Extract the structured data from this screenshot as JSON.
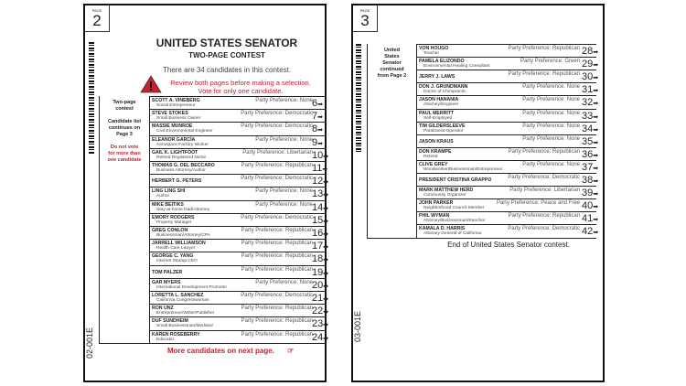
{
  "left_page": {
    "page_label": "PAGE",
    "page_number": "2",
    "title": "UNITED STATES SENATOR",
    "subtitle": "TWO-PAGE CONTEST",
    "count_text": "There are 34 candidates in this contest.",
    "warning_line1": "Review both pages before making a selection.",
    "warning_line2": "Vote for only one candidate.",
    "side_note1": "Two-page contest",
    "side_note2": "Candidate list continues on Page 3",
    "side_warning": "Do not vote for more than one candidate",
    "footer": "More candidates on next page.",
    "code": "02-001E",
    "candidates": [
      {
        "name": "SCOTT A. VINEBERG",
        "occupation": "Social Entrepreneur",
        "party": "Party Preference: None",
        "number": "6"
      },
      {
        "name": "STEVE STOKES",
        "occupation": "Small Business Owner",
        "party": "Party Preference: Democratic",
        "number": "7"
      },
      {
        "name": "MASSIE MUNROE",
        "occupation": "Civil Environmental Engineer",
        "party": "Party Preference: Democratic",
        "number": "8"
      },
      {
        "name": "ELEANOR GARCÍA",
        "occupation": "Aerospace Factory Worker",
        "party": "Party Preference: None",
        "number": "9"
      },
      {
        "name": "GAIL K. LIGHTFOOT",
        "occupation": "Retired Registered Nurse",
        "party": "Party Preference: Libertarian",
        "number": "10"
      },
      {
        "name": "THOMAS G. DEL BECCARO",
        "occupation": "Business Attorney/Author",
        "party": "Party Preference: Republican",
        "number": "11"
      },
      {
        "name": "HERBERT G. PETERS",
        "occupation": "",
        "party": "Party Preference: Democratic",
        "number": "12"
      },
      {
        "name": "LING LING SHI",
        "occupation": "Author",
        "party": "Party Preference: None",
        "number": "13"
      },
      {
        "name": "MIKE BEITIKS",
        "occupation": "Stay-at-home Dad/Attorney",
        "party": "Party Preference: None",
        "number": "14"
      },
      {
        "name": "EMORY RODGERS",
        "occupation": "Property Manager",
        "party": "Party Preference: Democratic",
        "number": "15"
      },
      {
        "name": "GREG CONLON",
        "occupation": "Businessman/Attorney/CPA",
        "party": "Party Preference: Republican",
        "number": "16"
      },
      {
        "name": "JARRELL WILLIAMSON",
        "occupation": "Health Care Lawyer",
        "party": "Party Preference: Republican",
        "number": "17"
      },
      {
        "name": "GEORGE C. YANG",
        "occupation": "Internet Startup CEO",
        "party": "Party Preference: Republican",
        "number": "18"
      },
      {
        "name": "TOM PALZER",
        "occupation": "",
        "party": "Party Preference: Republican",
        "number": "19"
      },
      {
        "name": "GAR MYERS",
        "occupation": "International Development Promoter",
        "party": "Party Preference: None",
        "number": "20"
      },
      {
        "name": "LORETTA L. SANCHEZ",
        "occupation": "California Congresswoman",
        "party": "Party Preference: Democratic",
        "number": "21"
      },
      {
        "name": "RON UNZ",
        "occupation": "Entrepreneur/Writer/Publisher",
        "party": "Party Preference: Republican",
        "number": "22"
      },
      {
        "name": "DUF SUNDHEIM",
        "occupation": "Small Businessman/Mediator",
        "party": "Party Preference: Republican",
        "number": "23"
      },
      {
        "name": "KAREN ROSEBERRY",
        "occupation": "Educator",
        "party": "Party Preference: Republican",
        "number": "24"
      }
    ]
  },
  "right_page": {
    "page_label": "PAGE",
    "page_number": "3",
    "side_note": "United States Senator continued from Page 2",
    "footer": "End of United States Senator contest.",
    "code": "03-001E",
    "candidates": [
      {
        "name": "VON HOUGO",
        "occupation": "Teacher",
        "party": "Party Preference: Republican",
        "number": "28"
      },
      {
        "name": "PAMELA ELIZONDO",
        "occupation": "Environmental Healing Consultant",
        "party": "Party Preference: Green",
        "number": "29"
      },
      {
        "name": "JERRY J. LAWS",
        "occupation": "",
        "party": "Party Preference: Republican",
        "number": "30"
      },
      {
        "name": "DON J. GRUNDMANN",
        "occupation": "Doctor of Chiropractic",
        "party": "Party Preference: None",
        "number": "31"
      },
      {
        "name": "JASON HANANIA",
        "occupation": "Attorney/Engineer",
        "party": "Party Preference: None",
        "number": "32"
      },
      {
        "name": "PAUL MERRITT",
        "occupation": "Self-Employed",
        "party": "Party Preference: None",
        "number": "33"
      },
      {
        "name": "TIM GILDERSLEEVE",
        "occupation": "Paratransit Operator",
        "party": "Party Preference: None",
        "number": "34"
      },
      {
        "name": "JASON KRAUS",
        "occupation": "",
        "party": "Party Preference: None",
        "number": "35"
      },
      {
        "name": "DON KRAMPE",
        "occupation": "Retired",
        "party": "Party Preference: Republican",
        "number": "36"
      },
      {
        "name": "CLIVE GREY",
        "occupation": "Woodworker/Businessman/Entrepreneur",
        "party": "Party Preference: None",
        "number": "37"
      },
      {
        "name": "PRESIDENT CRISTINA GRAPPO",
        "occupation": "",
        "party": "Party Preference: Democratic",
        "number": "38"
      },
      {
        "name": "MARK MATTHEW HERD",
        "occupation": "Community Organizer",
        "party": "Party Preference: Libertarian",
        "number": "39"
      },
      {
        "name": "JOHN PARKER",
        "occupation": "Neighborhood Council Member",
        "party": "Party Preference: Peace and Free",
        "number": "40"
      },
      {
        "name": "PHIL WYMAN",
        "occupation": "Attorney/Businessman/Rancher",
        "party": "Party Preference: Republican",
        "number": "41"
      },
      {
        "name": "KAMALA D. HARRIS",
        "occupation": "Attorney General of California",
        "party": "Party Preference: Democratic",
        "number": "42"
      }
    ]
  },
  "colors": {
    "warning_red": "#c8202f",
    "text": "#222222"
  }
}
